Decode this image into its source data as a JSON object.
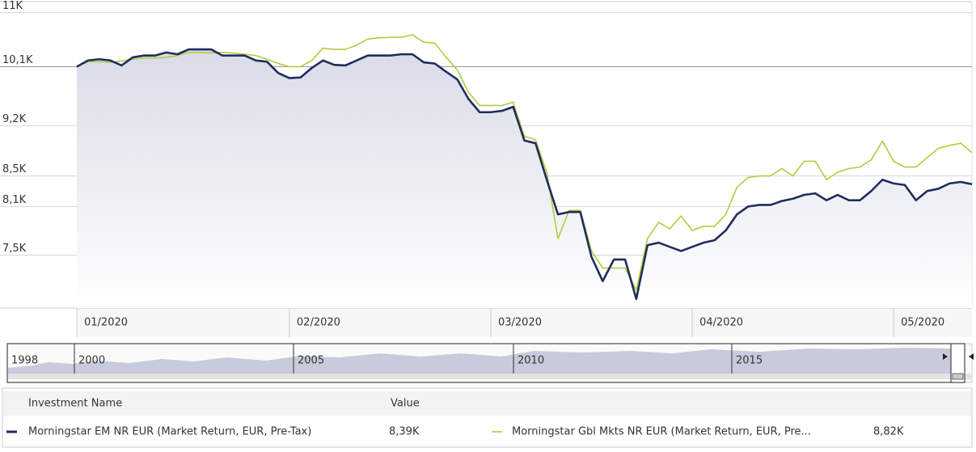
{
  "chart_data": {
    "type": "line",
    "log_scale": true,
    "grid": true,
    "area_under_first": true,
    "categories": [
      "01/2020",
      null,
      null,
      null,
      null,
      null,
      null,
      null,
      null,
      null,
      null,
      null,
      null,
      null,
      null,
      null,
      null,
      null,
      null,
      "02/2020",
      null,
      null,
      null,
      null,
      null,
      null,
      null,
      null,
      null,
      null,
      null,
      null,
      null,
      null,
      null,
      null,
      null,
      "03/2020",
      null,
      null,
      null,
      null,
      null,
      null,
      null,
      null,
      null,
      null,
      null,
      null,
      null,
      null,
      null,
      null,
      null,
      "04/2020",
      null,
      null,
      null,
      null,
      null,
      null,
      null,
      null,
      null,
      null,
      null,
      null,
      null,
      null,
      null,
      null,
      null,
      "05/2020",
      null,
      null,
      null,
      null,
      null,
      null,
      null
    ],
    "series": [
      {
        "name": "Morningstar EM NR EUR (Market Return, EUR, Pre-Tax)",
        "color": "#1f2d5e",
        "current": {
          "value": 8390,
          "label": "8,39K"
        },
        "values": [
          10100,
          10200,
          10220,
          10200,
          10120,
          10250,
          10280,
          10280,
          10330,
          10300,
          10380,
          10380,
          10380,
          10280,
          10280,
          10280,
          10200,
          10180,
          10000,
          9920,
          9930,
          10080,
          10200,
          10130,
          10120,
          10200,
          10280,
          10280,
          10280,
          10300,
          10300,
          10170,
          10150,
          10020,
          9900,
          9600,
          9400,
          9400,
          9420,
          9480,
          8990,
          8950,
          8450,
          8000,
          8030,
          8030,
          7480,
          7200,
          7450,
          7450,
          7000,
          7620,
          7650,
          7600,
          7550,
          7600,
          7650,
          7680,
          7800,
          8000,
          8100,
          8120,
          8120,
          8170,
          8200,
          8250,
          8270,
          8180,
          8250,
          8180,
          8180,
          8300,
          8450,
          8400,
          8380,
          8180,
          8300,
          8330,
          8400,
          8420,
          8390
        ]
      },
      {
        "name": "Morningstar Gbl Mkts NR EUR (Market Return, EUR, Pre...",
        "color": "#b3cc3e",
        "current": {
          "value": 8820,
          "label": "8,82K"
        },
        "values": [
          10100,
          10180,
          10180,
          10170,
          10190,
          10220,
          10240,
          10240,
          10250,
          10280,
          10330,
          10330,
          10320,
          10330,
          10320,
          10300,
          10280,
          10220,
          10150,
          10100,
          10100,
          10200,
          10400,
          10380,
          10380,
          10450,
          10550,
          10570,
          10580,
          10580,
          10620,
          10500,
          10480,
          10250,
          10050,
          9700,
          9500,
          9500,
          9500,
          9550,
          9050,
          9000,
          8550,
          7700,
          8050,
          8050,
          7550,
          7350,
          7350,
          7350,
          7100,
          7700,
          7900,
          7820,
          7980,
          7800,
          7850,
          7850,
          8000,
          8350,
          8480,
          8500,
          8500,
          8600,
          8500,
          8700,
          8700,
          8450,
          8550,
          8600,
          8620,
          8720,
          8980,
          8700,
          8620,
          8620,
          8750,
          8880,
          8920,
          8950,
          8820
        ]
      }
    ],
    "ylim": [
      6900,
      11150
    ],
    "yticks": [
      {
        "value": 7500,
        "label": "7,5K"
      },
      {
        "value": 8100,
        "label": "8,1K"
      },
      {
        "value": 8500,
        "label": "8,5K"
      },
      {
        "value": 9200,
        "label": "9,2K"
      },
      {
        "value": 10100,
        "label": "10,1K"
      },
      {
        "value": 11000,
        "label": "11K"
      }
    ],
    "legend_headers": [
      "Investment Name",
      "Value"
    ],
    "navigator": {
      "labels": [
        "1998",
        "2000",
        "2005",
        "2010",
        "2015"
      ]
    }
  }
}
